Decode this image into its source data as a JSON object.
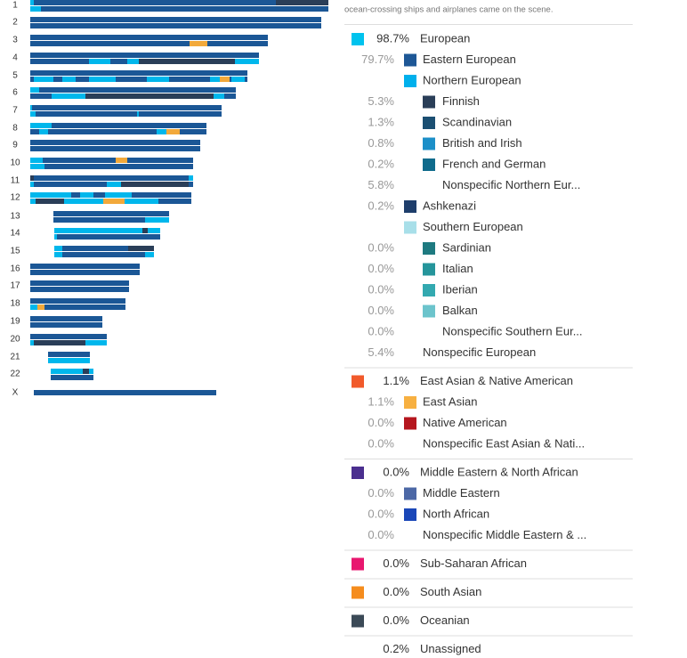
{
  "intro": "ocean-crossing ships and airplanes came on the scene.",
  "chromosomes": [
    "1",
    "2",
    "3",
    "4",
    "5",
    "6",
    "7",
    "8",
    "9",
    "10",
    "11",
    "12",
    "13",
    "14",
    "15",
    "16",
    "17",
    "18",
    "19",
    "20",
    "21",
    "22",
    "X"
  ],
  "sections": [
    {
      "rows": [
        {
          "level": 0,
          "pct": "98.7%",
          "label": "European",
          "color": "#00c3ee"
        },
        {
          "level": 1,
          "pct": "79.7%",
          "label": "Eastern European",
          "color": "#1d5796"
        },
        {
          "level": 1,
          "label": "Northern European",
          "color": "#00b0ec"
        },
        {
          "level": 2,
          "pct": "5.3%",
          "label": "Finnish",
          "color": "#2a3e58"
        },
        {
          "level": 2,
          "pct": "1.3%",
          "label": "Scandinavian",
          "color": "#1b4f72"
        },
        {
          "level": 2,
          "pct": "0.8%",
          "label": "British and Irish",
          "color": "#1c8fc8"
        },
        {
          "level": 2,
          "pct": "0.2%",
          "label": "French and German",
          "color": "#0f6b8c"
        },
        {
          "level": 2,
          "pct": "5.8%",
          "label": "Nonspecific Northern Eur..."
        },
        {
          "level": 1,
          "pct": "0.2%",
          "label": "Ashkenazi",
          "color": "#1e3e6b"
        },
        {
          "level": 1,
          "label": "Southern European",
          "color": "#a8dfe9"
        },
        {
          "level": 2,
          "pct": "0.0%",
          "label": "Sardinian",
          "color": "#1e7a80"
        },
        {
          "level": 2,
          "pct": "0.0%",
          "label": "Italian",
          "color": "#25959b"
        },
        {
          "level": 2,
          "pct": "0.0%",
          "label": "Iberian",
          "color": "#33a9b0"
        },
        {
          "level": 2,
          "pct": "0.0%",
          "label": "Balkan",
          "color": "#6cc4cc"
        },
        {
          "level": 2,
          "pct": "0.0%",
          "label": "Nonspecific Southern Eur..."
        },
        {
          "level": 1,
          "pct": "5.4%",
          "label": "Nonspecific European"
        }
      ]
    },
    {
      "rows": [
        {
          "level": 0,
          "pct": "1.1%",
          "label": "East Asian & Native American",
          "color": "#f15a2b"
        },
        {
          "level": 1,
          "pct": "1.1%",
          "label": "East Asian",
          "color": "#f7b041"
        },
        {
          "level": 1,
          "pct": "0.0%",
          "label": "Native American",
          "color": "#b5161e"
        },
        {
          "level": 1,
          "pct": "0.0%",
          "label": "Nonspecific East Asian & Nati..."
        }
      ]
    },
    {
      "rows": [
        {
          "level": 0,
          "pct": "0.0%",
          "label": "Middle Eastern & North African",
          "color": "#4b2f8f"
        },
        {
          "level": 1,
          "pct": "0.0%",
          "label": "Middle Eastern",
          "color": "#4c68a6"
        },
        {
          "level": 1,
          "pct": "0.0%",
          "label": "North African",
          "color": "#1a47b8"
        },
        {
          "level": 1,
          "pct": "0.0%",
          "label": "Nonspecific Middle Eastern & ..."
        }
      ]
    },
    {
      "rows": [
        {
          "level": 0,
          "pct": "0.0%",
          "label": "Sub-Saharan African",
          "color": "#e8176f"
        }
      ]
    },
    {
      "rows": [
        {
          "level": 0,
          "pct": "0.0%",
          "label": "South Asian",
          "color": "#f58c1d"
        }
      ]
    },
    {
      "rows": [
        {
          "level": 0,
          "pct": "0.0%",
          "label": "Oceanian",
          "color": "#3b4a57"
        }
      ]
    },
    {
      "rows": [
        {
          "level": 0,
          "pct": "0.2%",
          "label": "Unassigned"
        }
      ]
    }
  ]
}
